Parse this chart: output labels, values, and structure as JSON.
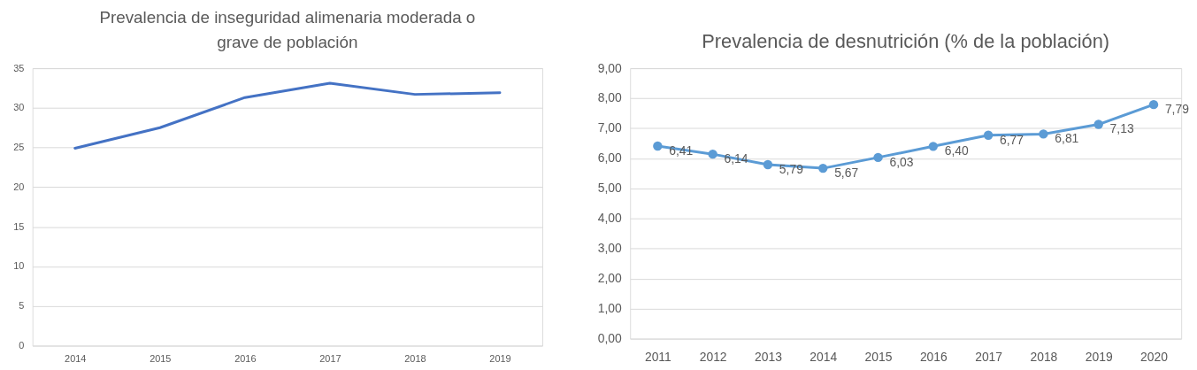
{
  "chart_data": [
    {
      "type": "line",
      "title": "Prevalencia de inseguridad alimenaria moderada o grave de población",
      "categories": [
        "2014",
        "2015",
        "2016",
        "2017",
        "2018",
        "2019"
      ],
      "series": [
        {
          "color": "#4472c4",
          "values": [
            24.9,
            27.5,
            31.3,
            33.1,
            31.7,
            31.9
          ]
        }
      ],
      "ylim": [
        0,
        35
      ],
      "yticks": [
        0,
        5,
        10,
        15,
        20,
        25,
        30,
        35
      ],
      "grid": "y",
      "line_style": "solid"
    },
    {
      "type": "line",
      "title": "Prevalencia de desnutrición (% de la población)",
      "categories": [
        "2011",
        "2012",
        "2013",
        "2014",
        "2015",
        "2016",
        "2017",
        "2018",
        "2019",
        "2020"
      ],
      "series": [
        {
          "color": "#5b9bd5",
          "values": [
            6.41,
            6.14,
            5.79,
            5.67,
            6.03,
            6.4,
            6.77,
            6.81,
            7.13,
            7.79
          ],
          "value_labels": [
            "6,41",
            "6,14",
            "5,79",
            "5,67",
            "6,03",
            "6,40",
            "6,77",
            "6,81",
            "7,13",
            "7,79"
          ]
        }
      ],
      "ylim": [
        0,
        9
      ],
      "yticks": [
        {
          "value": 0,
          "label": "0,00"
        },
        {
          "value": 1,
          "label": "1,00"
        },
        {
          "value": 2,
          "label": "2,00"
        },
        {
          "value": 3,
          "label": "3,00"
        },
        {
          "value": 4,
          "label": "4,00"
        },
        {
          "value": 5,
          "label": "5,00"
        },
        {
          "value": 6,
          "label": "6,00"
        },
        {
          "value": 7,
          "label": "7,00"
        },
        {
          "value": 8,
          "label": "8,00"
        },
        {
          "value": 9,
          "label": "9,00"
        }
      ],
      "grid": "y",
      "marker": "circle",
      "line_style": "solid"
    }
  ]
}
